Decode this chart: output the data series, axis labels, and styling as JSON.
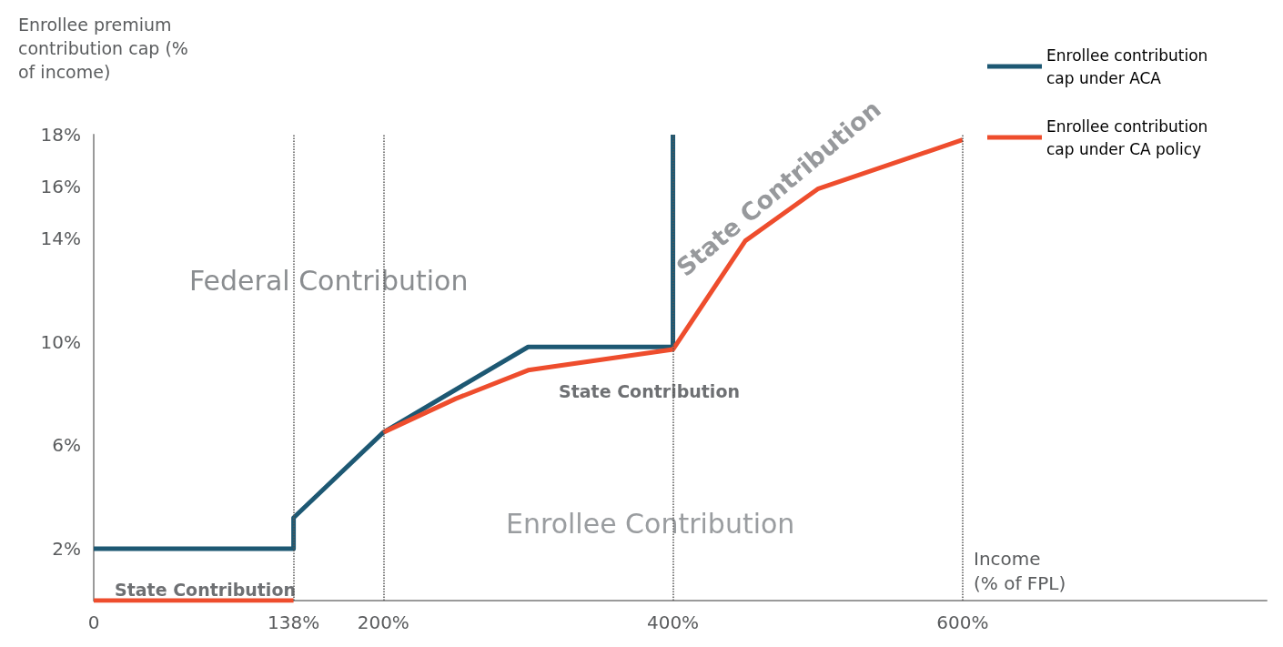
{
  "chart_data": {
    "type": "line",
    "ylabel": "Enrollee premium contribution cap (% of income)",
    "xlabel": "Income (% of FPL)",
    "xlim": [
      0,
      810
    ],
    "xticks": [
      {
        "value": 0,
        "label": "0"
      },
      {
        "value": 138,
        "label": "138%"
      },
      {
        "value": 200,
        "label": "200%"
      },
      {
        "value": 400,
        "label": "400%"
      },
      {
        "value": 600,
        "label": "600%"
      }
    ],
    "ylim": [
      0,
      18
    ],
    "yticks": [
      {
        "value": 2,
        "label": "2%"
      },
      {
        "value": 6,
        "label": "6%"
      },
      {
        "value": 10,
        "label": "10%"
      },
      {
        "value": 14,
        "label": "14%"
      },
      {
        "value": 16,
        "label": "16%"
      },
      {
        "value": 18,
        "label": "18%"
      }
    ],
    "series": [
      {
        "name": "Enrollee contribution cap under ACA",
        "color": "#1d5873",
        "x": [
          0,
          138,
          138,
          200,
          300,
          400,
          400
        ],
        "values": [
          2,
          2,
          3.2,
          6.5,
          9.8,
          9.8,
          18
        ]
      },
      {
        "name": "Enrollee contribution cap under CA policy",
        "color": "#ee4d2d",
        "x": [
          0,
          138,
          169,
          200,
          250,
          300,
          400,
          450,
          500,
          600
        ],
        "values": [
          0,
          0,
          null,
          6.5,
          7.8,
          8.9,
          9.7,
          13.9,
          15.9,
          17.8
        ]
      }
    ],
    "ref_lines": [
      {
        "axis": "x",
        "value": 138,
        "line_style": "dotted"
      },
      {
        "axis": "x",
        "value": 200,
        "line_style": "dotted"
      },
      {
        "axis": "x",
        "value": 400,
        "line_style": "dotted"
      },
      {
        "axis": "x",
        "value": 600,
        "line_style": "dotted"
      }
    ],
    "annotations": [
      "Federal Contribution",
      "Enrollee Contribution",
      "State Contribution",
      "State Contribution",
      "State Contribution"
    ],
    "grid": false,
    "legend": "top right",
    "marker": "none",
    "line_style": "solid"
  }
}
